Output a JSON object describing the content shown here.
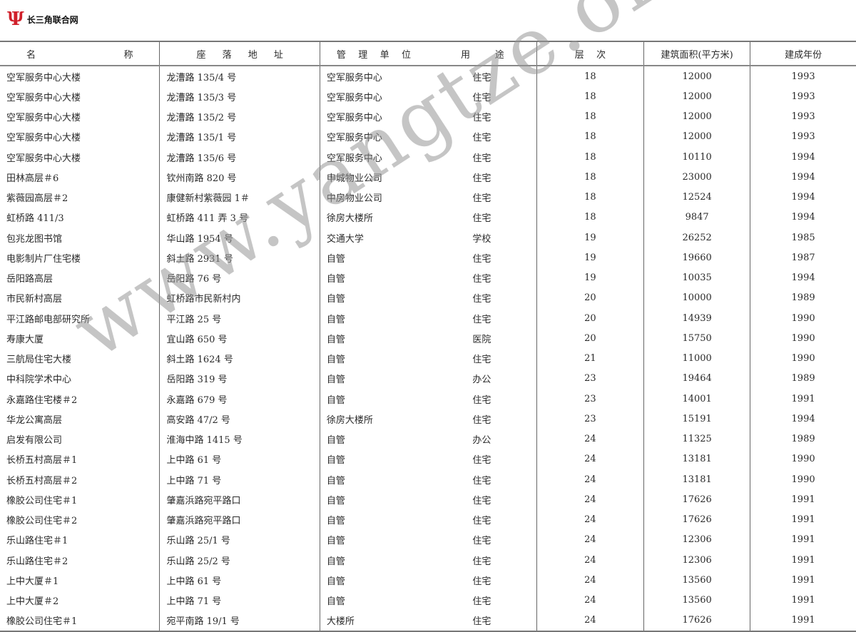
{
  "header": {
    "logo_mark": "Ψ",
    "site_name": "长三角联合网"
  },
  "watermark": "www.yangtze.org.cn",
  "table": {
    "columns": [
      "名 称",
      "座落地址",
      "管理单位",
      "用途",
      "层次",
      "建筑面积(平方米)",
      "建成年份"
    ],
    "column_chars": {
      "name": [
        "名",
        "称"
      ],
      "address": [
        "座",
        "落",
        "地",
        "址"
      ],
      "unit": [
        "管",
        "理",
        "单",
        "位"
      ],
      "use": [
        "用",
        "途"
      ],
      "floors": [
        "层",
        "次"
      ]
    },
    "rows": [
      [
        "空军服务中心大楼",
        "龙漕路 135/4 号",
        "空军服务中心",
        "住宅",
        "18",
        "12000",
        "1993"
      ],
      [
        "空军服务中心大楼",
        "龙漕路 135/3 号",
        "空军服务中心",
        "住宅",
        "18",
        "12000",
        "1993"
      ],
      [
        "空军服务中心大楼",
        "龙漕路 135/2 号",
        "空军服务中心",
        "住宅",
        "18",
        "12000",
        "1993"
      ],
      [
        "空军服务中心大楼",
        "龙漕路 135/1 号",
        "空军服务中心",
        "住宅",
        "18",
        "12000",
        "1993"
      ],
      [
        "空军服务中心大楼",
        "龙漕路 135/6 号",
        "空军服务中心",
        "住宅",
        "18",
        "10110",
        "1994"
      ],
      [
        "田林高层＃6",
        "钦州南路 820 号",
        "申城物业公司",
        "住宅",
        "18",
        "23000",
        "1994"
      ],
      [
        "紫薇园高层＃2",
        "康健新村紫薇园 1＃",
        "中房物业公司",
        "住宅",
        "18",
        "12524",
        "1994"
      ],
      [
        "虹桥路 411/3",
        "虹桥路 411 弄 3 号",
        "徐房大楼所",
        "住宅",
        "18",
        "9847",
        "1994"
      ],
      [
        "包兆龙图书馆",
        "华山路 1954 号",
        "交通大学",
        "学校",
        "19",
        "26252",
        "1985"
      ],
      [
        "电影制片厂住宅楼",
        "斜土路 2931 号",
        "自管",
        "住宅",
        "19",
        "19660",
        "1987"
      ],
      [
        "岳阳路高层",
        "岳阳路 76 号",
        "自管",
        "住宅",
        "19",
        "10035",
        "1994"
      ],
      [
        "市民新村高层",
        "虹桥路市民新村内",
        "自管",
        "住宅",
        "20",
        "10000",
        "1989"
      ],
      [
        "平江路邮电部研究所",
        "平江路 25 号",
        "自管",
        "住宅",
        "20",
        "14939",
        "1990"
      ],
      [
        "寿康大厦",
        "宜山路 650 号",
        "自管",
        "医院",
        "20",
        "15750",
        "1990"
      ],
      [
        "三航局住宅大楼",
        "斜土路 1624 号",
        "自管",
        "住宅",
        "21",
        "11000",
        "1990"
      ],
      [
        "中科院学术中心",
        "岳阳路 319 号",
        "自管",
        "办公",
        "23",
        "19464",
        "1989"
      ],
      [
        "永嘉路住宅楼＃2",
        "永嘉路 679 号",
        "自管",
        "住宅",
        "23",
        "14001",
        "1991"
      ],
      [
        "华龙公寓高层",
        "高安路 47/2 号",
        "徐房大楼所",
        "住宅",
        "23",
        "15191",
        "1994"
      ],
      [
        "启发有限公司",
        "淮海中路 1415 号",
        "自管",
        "办公",
        "24",
        "11325",
        "1989"
      ],
      [
        "长桥五村高层＃1",
        "上中路 61 号",
        "自管",
        "住宅",
        "24",
        "13181",
        "1990"
      ],
      [
        "长桥五村高层＃2",
        "上中路 71 号",
        "自管",
        "住宅",
        "24",
        "13181",
        "1990"
      ],
      [
        "橡胶公司住宅＃1",
        "肇嘉浜路宛平路口",
        "自管",
        "住宅",
        "24",
        "17626",
        "1991"
      ],
      [
        "橡胶公司住宅＃2",
        "肇嘉浜路宛平路口",
        "自管",
        "住宅",
        "24",
        "17626",
        "1991"
      ],
      [
        "乐山路住宅＃1",
        "乐山路 25/1 号",
        "自管",
        "住宅",
        "24",
        "12306",
        "1991"
      ],
      [
        "乐山路住宅＃2",
        "乐山路 25/2 号",
        "自管",
        "住宅",
        "24",
        "12306",
        "1991"
      ],
      [
        "上中大厦＃1",
        "上中路 61 号",
        "自管",
        "住宅",
        "24",
        "13560",
        "1991"
      ],
      [
        "上中大厦＃2",
        "上中路 71 号",
        "自管",
        "住宅",
        "24",
        "13560",
        "1991"
      ],
      [
        "橡胶公司住宅＃1",
        "宛平南路 19/1 号",
        "大楼所",
        "住宅",
        "24",
        "17626",
        "1991"
      ]
    ]
  }
}
